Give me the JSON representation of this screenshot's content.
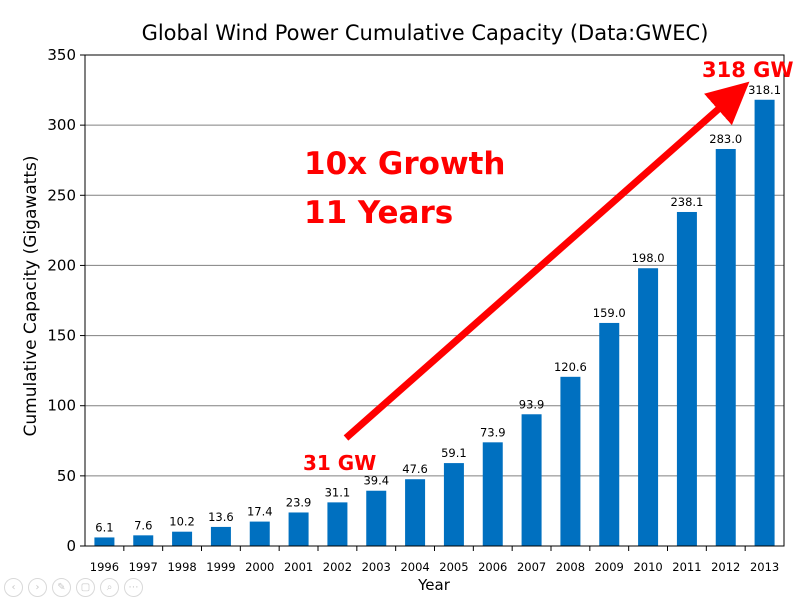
{
  "chart_data": {
    "type": "bar",
    "title": "Global Wind Power Cumulative Capacity (Data:GWEC)",
    "xlabel": "Year",
    "ylabel": "Cumulative Capacity (Gigawatts)",
    "ylim": [
      0,
      350
    ],
    "yticks": [
      0,
      50,
      100,
      150,
      200,
      250,
      300,
      350
    ],
    "grid": true,
    "categories": [
      "1996",
      "1997",
      "1998",
      "1999",
      "2000",
      "2001",
      "2002",
      "2003",
      "2004",
      "2005",
      "2006",
      "2007",
      "2008",
      "2009",
      "2010",
      "2011",
      "2012",
      "2013"
    ],
    "values": [
      6.1,
      7.6,
      10.2,
      13.6,
      17.4,
      23.9,
      31.1,
      39.4,
      47.6,
      59.1,
      73.9,
      93.9,
      120.6,
      159.0,
      198.0,
      238.1,
      283.0,
      318.1
    ],
    "value_labels": [
      "6.1",
      "7.6",
      "10.2",
      "13.6",
      "17.4",
      "23.9",
      "31.1",
      "39.4",
      "47.6",
      "59.1",
      "73.9",
      "93.9",
      "120.6",
      "159.0",
      "198.0",
      "238.1",
      "283.0",
      "318.1"
    ],
    "bar_color": "#0070c0",
    "annotations": {
      "growth_line1": "10x Growth",
      "growth_line2": "11 Years",
      "start_label": "31 GW",
      "end_label": "318 GW",
      "color": "#ff0000"
    }
  },
  "toolbar": {
    "buttons": [
      {
        "name": "prev-button",
        "icon": "chevron-left-icon",
        "glyph": "‹"
      },
      {
        "name": "next-button",
        "icon": "chevron-right-icon",
        "glyph": "›"
      },
      {
        "name": "pen-button",
        "icon": "pen-icon",
        "glyph": "✎"
      },
      {
        "name": "slides-button",
        "icon": "slides-icon",
        "glyph": "▢"
      },
      {
        "name": "zoom-button",
        "icon": "zoom-icon",
        "glyph": "⌕"
      },
      {
        "name": "more-button",
        "icon": "more-icon",
        "glyph": "⋯"
      }
    ]
  }
}
